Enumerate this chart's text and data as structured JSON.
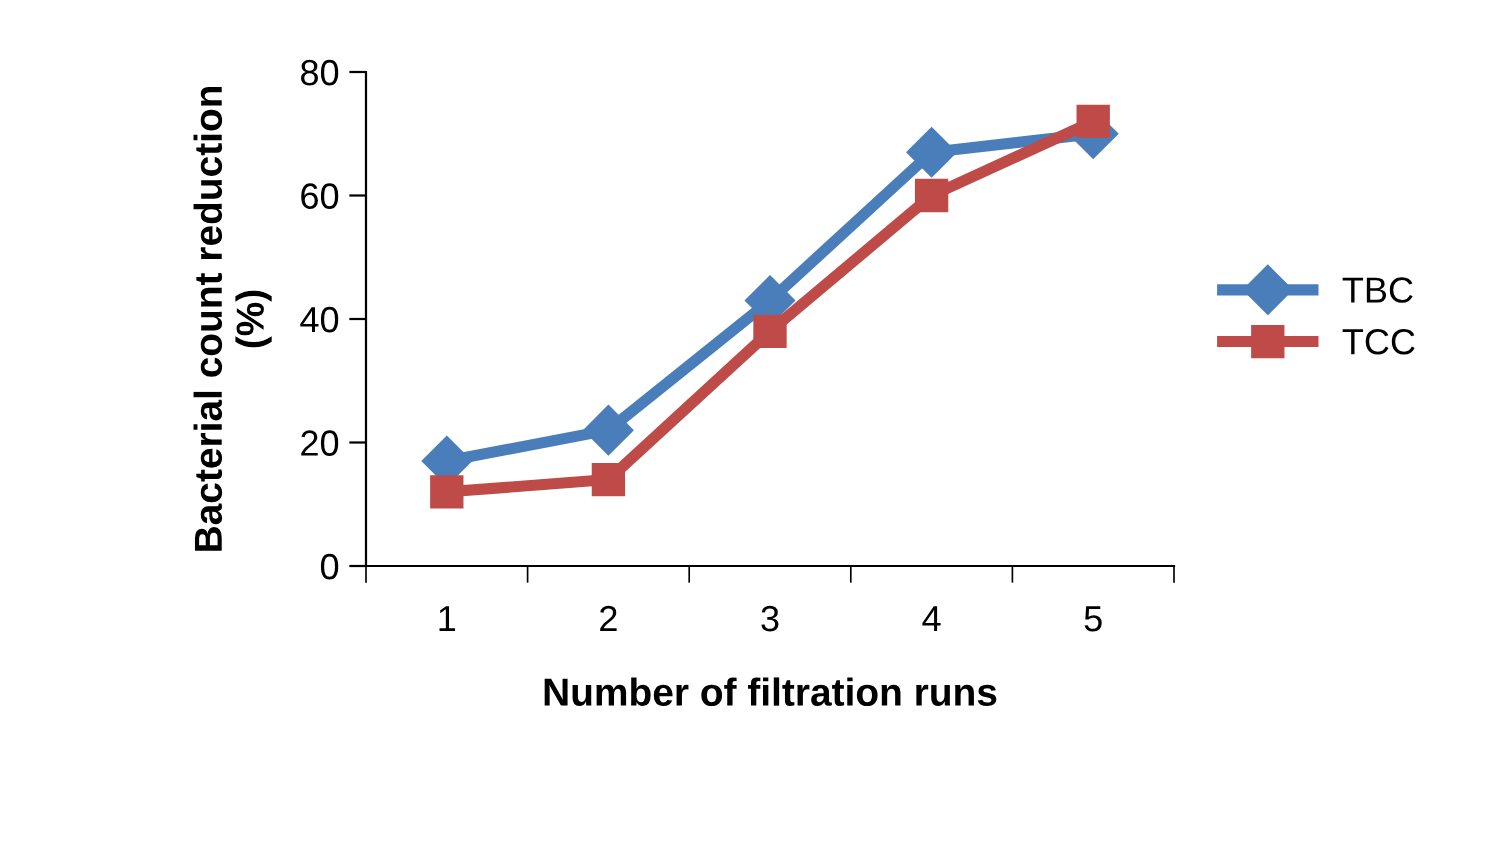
{
  "chart_data": {
    "type": "line",
    "xlabel": "Number of filtration runs",
    "ylabel": "Bacterial count reduction\n(%)",
    "categories": [
      "1",
      "2",
      "3",
      "4",
      "5"
    ],
    "series": [
      {
        "name": "TBC",
        "color": "#4a7ebb",
        "marker": "diamond",
        "values": [
          17,
          22,
          43,
          67,
          70
        ]
      },
      {
        "name": "TCC",
        "color": "#be4b48",
        "marker": "square",
        "values": [
          12,
          14,
          38,
          60,
          72
        ]
      }
    ],
    "ylim": [
      0,
      80
    ],
    "yticks": [
      0,
      20,
      40,
      60,
      80
    ],
    "grid": false,
    "legend": "right",
    "line_style": "solid"
  }
}
